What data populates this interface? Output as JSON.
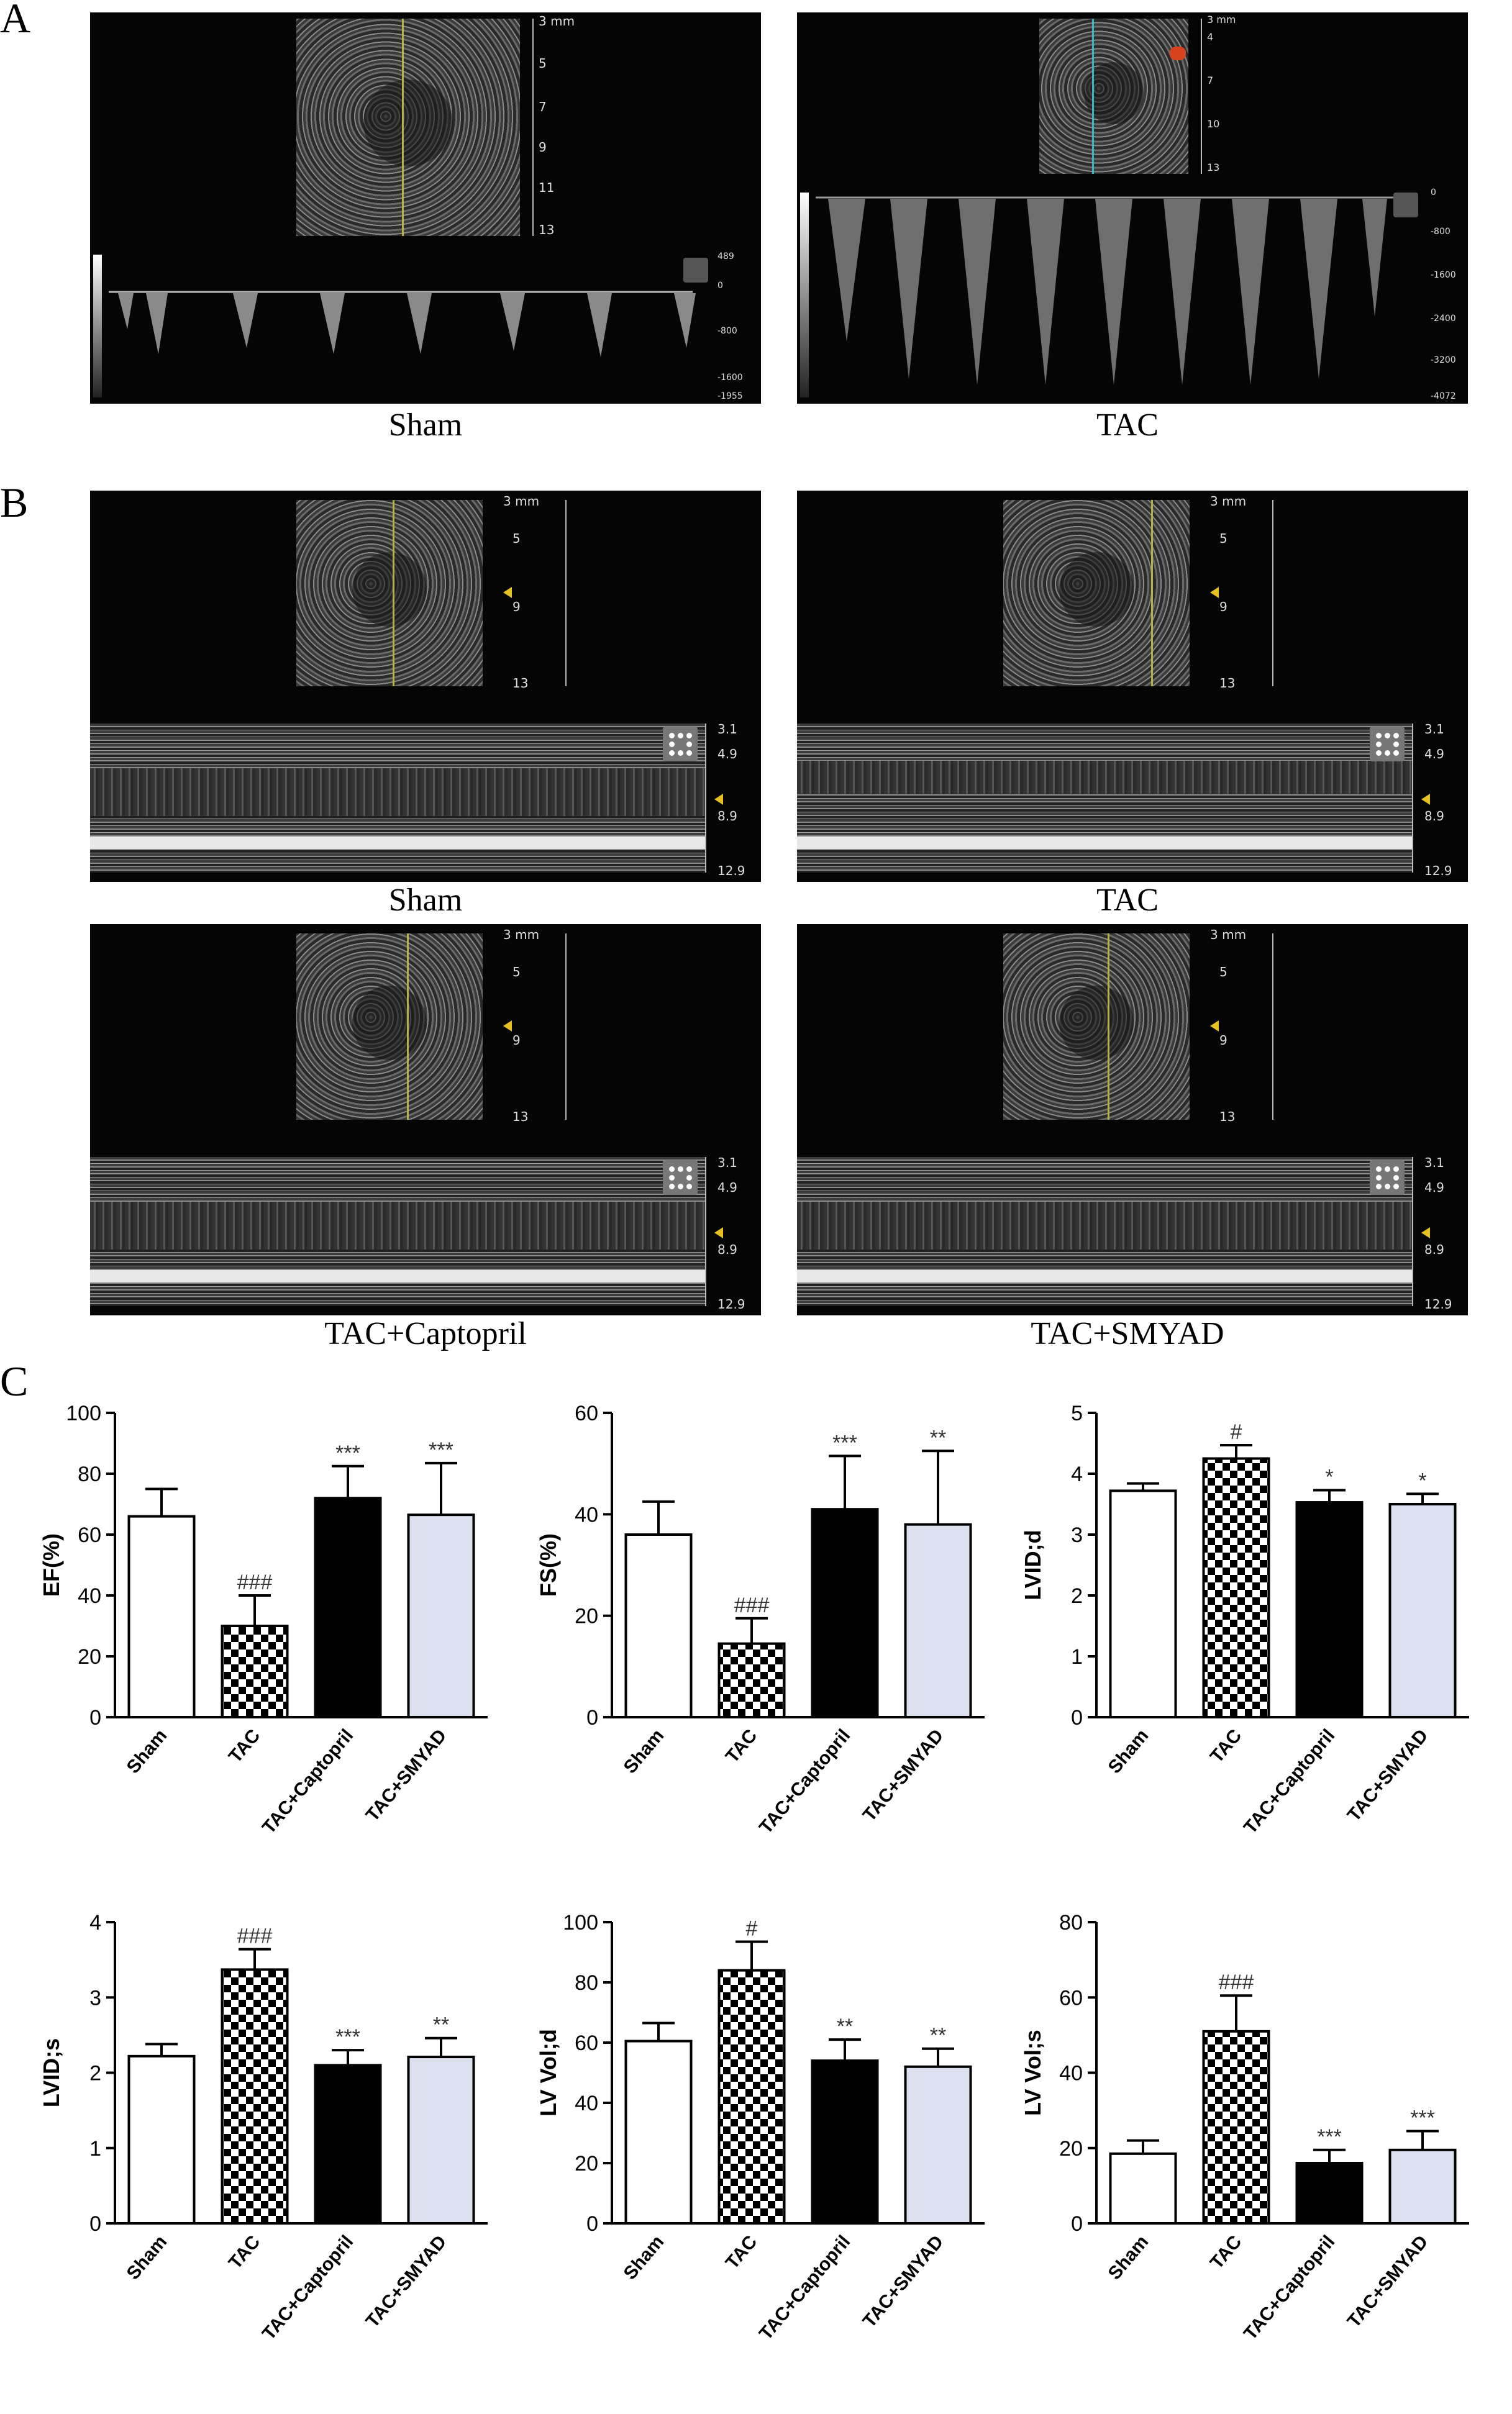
{
  "panels": {
    "A": {
      "letter": "A",
      "sham": {
        "caption": "Sham",
        "depth_ticks": [
          "3 mm",
          "5",
          "7",
          "9",
          "11",
          "13"
        ],
        "velocity_ticks": [
          "489",
          "0",
          "-800",
          "-1600",
          "-1955"
        ]
      },
      "tac": {
        "caption": "TAC",
        "depth_ticks": [
          "3 mm",
          "4",
          "7",
          "10",
          "13"
        ],
        "velocity_ticks": [
          "0",
          "-800",
          "-1600",
          "-2400",
          "-3200",
          "-4072"
        ]
      }
    },
    "B": {
      "letter": "B",
      "captions": [
        "Sham",
        "TAC",
        "TAC+Captopril",
        "TAC+SMYAD"
      ],
      "depth_ticks": [
        "3 mm",
        "5",
        "9",
        "13"
      ],
      "mmode_ticks": [
        "3.1",
        "4.9",
        "8.9",
        "12.9"
      ]
    },
    "C": {
      "letter": "C"
    }
  },
  "chart_data": [
    {
      "type": "bar",
      "ylabel": "EF(%)",
      "ylim": [
        0,
        100
      ],
      "yticks": [
        0,
        20,
        40,
        60,
        80,
        100
      ],
      "categories": [
        "Sham",
        "TAC",
        "TAC+Captopril",
        "TAC+SMYAD"
      ],
      "values": [
        66,
        30,
        72,
        66.5
      ],
      "errors": [
        9,
        10,
        10.5,
        17
      ],
      "annotations": [
        "",
        "###",
        "***",
        "***"
      ]
    },
    {
      "type": "bar",
      "ylabel": "FS(%)",
      "ylim": [
        0,
        60
      ],
      "yticks": [
        0,
        20,
        40,
        60
      ],
      "categories": [
        "Sham",
        "TAC",
        "TAC+Captopril",
        "TAC+SMYAD"
      ],
      "values": [
        36,
        14.5,
        41,
        38
      ],
      "errors": [
        6.5,
        5,
        10.5,
        14.5
      ],
      "annotations": [
        "",
        "###",
        "***",
        "**"
      ]
    },
    {
      "type": "bar",
      "ylabel": "LVID;d",
      "ylim": [
        0,
        5
      ],
      "yticks": [
        0,
        1,
        2,
        3,
        4,
        5
      ],
      "categories": [
        "Sham",
        "TAC",
        "TAC+Captopril",
        "TAC+SMYAD"
      ],
      "values": [
        3.72,
        4.25,
        3.53,
        3.5
      ],
      "errors": [
        0.12,
        0.22,
        0.2,
        0.17
      ],
      "annotations": [
        "",
        "#",
        "*",
        "*"
      ]
    },
    {
      "type": "bar",
      "ylabel": "LVID;s",
      "ylim": [
        0,
        4
      ],
      "yticks": [
        0,
        1,
        2,
        3,
        4
      ],
      "categories": [
        "Sham",
        "TAC",
        "TAC+Captopril",
        "TAC+SMYAD"
      ],
      "values": [
        2.22,
        3.37,
        2.1,
        2.21
      ],
      "errors": [
        0.16,
        0.27,
        0.2,
        0.25
      ],
      "annotations": [
        "",
        "###",
        "***",
        "**"
      ]
    },
    {
      "type": "bar",
      "ylabel": "LV Vol;d",
      "ylim": [
        0,
        100
      ],
      "yticks": [
        0,
        20,
        40,
        60,
        80,
        100
      ],
      "categories": [
        "Sham",
        "TAC",
        "TAC+Captopril",
        "TAC+SMYAD"
      ],
      "values": [
        60.5,
        84,
        54,
        52
      ],
      "errors": [
        6,
        9.5,
        7,
        6
      ],
      "annotations": [
        "",
        "#",
        "**",
        "**"
      ]
    },
    {
      "type": "bar",
      "ylabel": "LV Vol;s",
      "ylim": [
        0,
        80
      ],
      "yticks": [
        0,
        20,
        40,
        60,
        80
      ],
      "categories": [
        "Sham",
        "TAC",
        "TAC+Captopril",
        "TAC+SMYAD"
      ],
      "values": [
        18.5,
        51,
        16,
        19.5
      ],
      "errors": [
        3.5,
        9.5,
        3.5,
        5
      ],
      "annotations": [
        "",
        "###",
        "***",
        "***"
      ]
    }
  ],
  "colors": {
    "sham": "#ffffff",
    "tac_pattern": "checkerboard",
    "captopril": "#000000",
    "smyad": "#dde0ee"
  }
}
